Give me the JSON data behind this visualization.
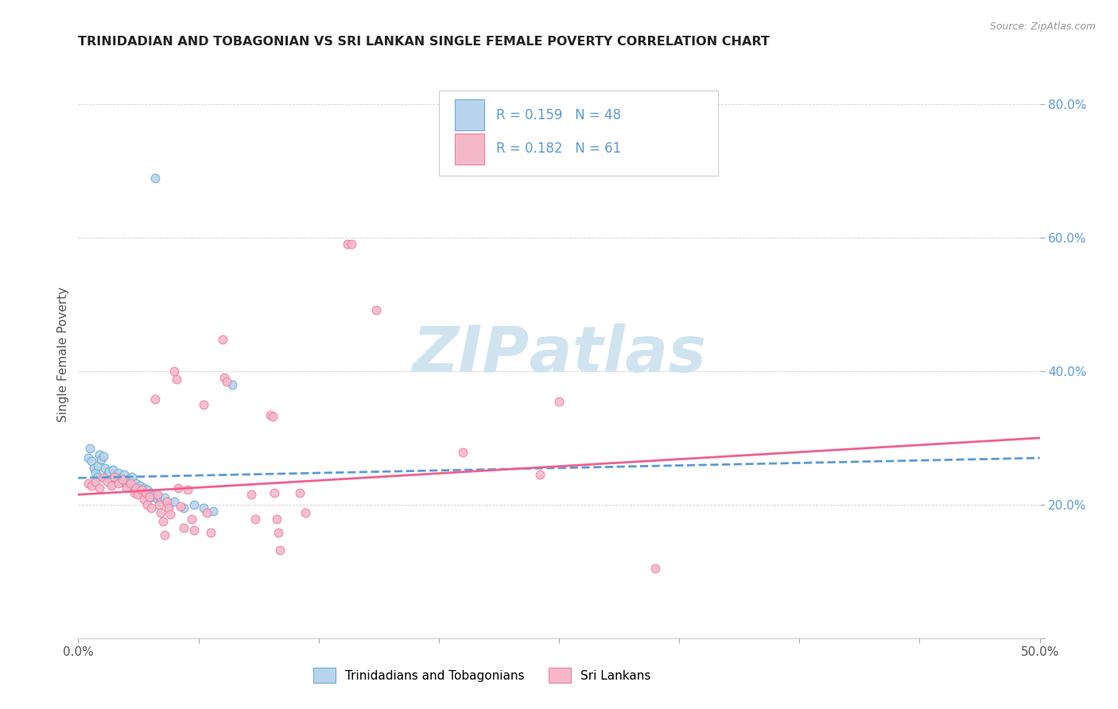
{
  "title": "TRINIDADIAN AND TOBAGONIAN VS SRI LANKAN SINGLE FEMALE POVERTY CORRELATION CHART",
  "source": "Source: ZipAtlas.com",
  "ylabel": "Single Female Poverty",
  "xlim": [
    0.0,
    0.5
  ],
  "ylim": [
    0.0,
    0.85
  ],
  "xticks": [
    0.0,
    0.0625,
    0.125,
    0.1875,
    0.25,
    0.3125,
    0.375,
    0.4375,
    0.5
  ],
  "xtick_labels_show": {
    "0.0": "0.0%",
    "0.50": "50.0%"
  },
  "yticks": [
    0.0,
    0.2,
    0.4,
    0.6,
    0.8
  ],
  "yticklabels_right": [
    "",
    "20.0%",
    "40.0%",
    "60.0%",
    "80.0%"
  ],
  "legend_r1": "R = 0.159",
  "legend_n1": "N = 48",
  "legend_r2": "R = 0.182",
  "legend_n2": "N = 61",
  "blue_fill": "#b8d4ec",
  "pink_fill": "#f5b8ca",
  "blue_edge": "#6aaed6",
  "pink_edge": "#f080a0",
  "trendline_blue": "#5b9bd5",
  "trendline_pink": "#f06090",
  "watermark_color": "#d0e4f0",
  "text_color": "#5b9bd5",
  "grid_color": "#cccccc",
  "blue_scatter": [
    [
      0.005,
      0.27
    ],
    [
      0.006,
      0.285
    ],
    [
      0.007,
      0.265
    ],
    [
      0.008,
      0.255
    ],
    [
      0.009,
      0.248
    ],
    [
      0.01,
      0.258
    ],
    [
      0.01,
      0.242
    ],
    [
      0.011,
      0.275
    ],
    [
      0.012,
      0.268
    ],
    [
      0.013,
      0.272
    ],
    [
      0.014,
      0.255
    ],
    [
      0.015,
      0.245
    ],
    [
      0.016,
      0.25
    ],
    [
      0.017,
      0.238
    ],
    [
      0.018,
      0.252
    ],
    [
      0.019,
      0.242
    ],
    [
      0.02,
      0.235
    ],
    [
      0.021,
      0.248
    ],
    [
      0.022,
      0.24
    ],
    [
      0.023,
      0.235
    ],
    [
      0.024,
      0.245
    ],
    [
      0.025,
      0.232
    ],
    [
      0.026,
      0.238
    ],
    [
      0.027,
      0.228
    ],
    [
      0.028,
      0.242
    ],
    [
      0.029,
      0.225
    ],
    [
      0.03,
      0.232
    ],
    [
      0.031,
      0.22
    ],
    [
      0.032,
      0.228
    ],
    [
      0.033,
      0.218
    ],
    [
      0.034,
      0.225
    ],
    [
      0.035,
      0.215
    ],
    [
      0.036,
      0.222
    ],
    [
      0.037,
      0.21
    ],
    [
      0.038,
      0.218
    ],
    [
      0.04,
      0.215
    ],
    [
      0.041,
      0.208
    ],
    [
      0.042,
      0.212
    ],
    [
      0.043,
      0.205
    ],
    [
      0.045,
      0.21
    ],
    [
      0.047,
      0.2
    ],
    [
      0.05,
      0.205
    ],
    [
      0.055,
      0.195
    ],
    [
      0.06,
      0.2
    ],
    [
      0.065,
      0.195
    ],
    [
      0.07,
      0.19
    ],
    [
      0.08,
      0.38
    ],
    [
      0.04,
      0.69
    ]
  ],
  "pink_scatter": [
    [
      0.005,
      0.232
    ],
    [
      0.007,
      0.228
    ],
    [
      0.009,
      0.235
    ],
    [
      0.011,
      0.225
    ],
    [
      0.013,
      0.24
    ],
    [
      0.015,
      0.235
    ],
    [
      0.017,
      0.228
    ],
    [
      0.019,
      0.242
    ],
    [
      0.021,
      0.232
    ],
    [
      0.023,
      0.238
    ],
    [
      0.025,
      0.225
    ],
    [
      0.027,
      0.232
    ],
    [
      0.029,
      0.218
    ],
    [
      0.03,
      0.225
    ],
    [
      0.031,
      0.215
    ],
    [
      0.033,
      0.222
    ],
    [
      0.034,
      0.208
    ],
    [
      0.035,
      0.218
    ],
    [
      0.036,
      0.2
    ],
    [
      0.037,
      0.212
    ],
    [
      0.038,
      0.195
    ],
    [
      0.04,
      0.358
    ],
    [
      0.041,
      0.215
    ],
    [
      0.042,
      0.2
    ],
    [
      0.043,
      0.188
    ],
    [
      0.044,
      0.175
    ],
    [
      0.045,
      0.155
    ],
    [
      0.046,
      0.205
    ],
    [
      0.047,
      0.195
    ],
    [
      0.048,
      0.185
    ],
    [
      0.05,
      0.4
    ],
    [
      0.051,
      0.388
    ],
    [
      0.052,
      0.225
    ],
    [
      0.053,
      0.198
    ],
    [
      0.055,
      0.165
    ],
    [
      0.057,
      0.222
    ],
    [
      0.059,
      0.178
    ],
    [
      0.06,
      0.162
    ],
    [
      0.065,
      0.35
    ],
    [
      0.067,
      0.188
    ],
    [
      0.069,
      0.158
    ],
    [
      0.075,
      0.448
    ],
    [
      0.076,
      0.39
    ],
    [
      0.077,
      0.385
    ],
    [
      0.09,
      0.215
    ],
    [
      0.092,
      0.178
    ],
    [
      0.1,
      0.335
    ],
    [
      0.101,
      0.332
    ],
    [
      0.102,
      0.218
    ],
    [
      0.103,
      0.178
    ],
    [
      0.104,
      0.158
    ],
    [
      0.105,
      0.132
    ],
    [
      0.115,
      0.218
    ],
    [
      0.118,
      0.188
    ],
    [
      0.14,
      0.59
    ],
    [
      0.142,
      0.59
    ],
    [
      0.155,
      0.492
    ],
    [
      0.2,
      0.278
    ],
    [
      0.24,
      0.245
    ],
    [
      0.25,
      0.355
    ],
    [
      0.3,
      0.105
    ]
  ],
  "blue_trend_x": [
    0.0,
    0.5
  ],
  "blue_trend_y": [
    0.24,
    0.27
  ],
  "pink_trend_x": [
    0.0,
    0.5
  ],
  "pink_trend_y": [
    0.215,
    0.3
  ]
}
